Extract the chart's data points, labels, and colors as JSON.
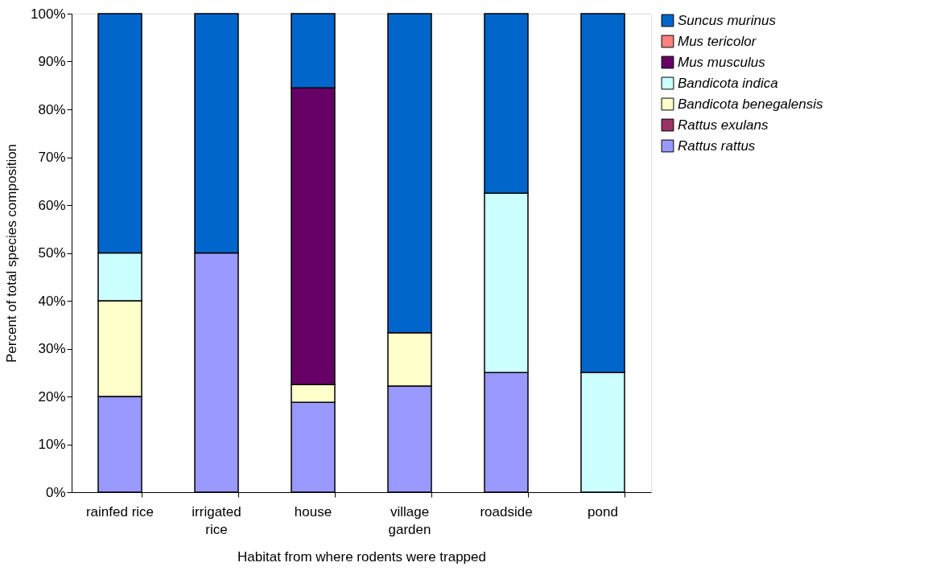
{
  "chart_data": {
    "type": "bar",
    "stacked": true,
    "xlabel": "Habitat from where rodents were trapped",
    "ylabel": "Percent of total species composition",
    "categories": [
      "rainfed rice",
      "irrigated rice",
      "house",
      "village garden",
      "roadside",
      "pond"
    ],
    "series": [
      {
        "name": "Rattus rattus",
        "color": "#9999ff",
        "values": [
          20,
          50,
          18.8,
          22.2,
          25,
          null
        ]
      },
      {
        "name": "Rattus exulans",
        "color": "#993366",
        "values": [
          null,
          null,
          null,
          null,
          null,
          null
        ]
      },
      {
        "name": "Bandicota benegalensis",
        "color": "#ffffcc",
        "values": [
          20,
          null,
          3.7,
          11.1,
          null,
          null
        ]
      },
      {
        "name": "Bandicota indica",
        "color": "#ccffff",
        "values": [
          10,
          null,
          null,
          null,
          37.5,
          25
        ]
      },
      {
        "name": "Mus musculus",
        "color": "#660066",
        "values": [
          null,
          null,
          62.0,
          null,
          null,
          null
        ]
      },
      {
        "name": "Mus tericolor",
        "color": "#ff8080",
        "values": [
          null,
          null,
          null,
          null,
          null,
          null
        ]
      },
      {
        "name": "Suncus murinus",
        "color": "#0066cc",
        "values": [
          50,
          50,
          15.5,
          66.7,
          37.5,
          75
        ]
      }
    ],
    "ylim": [
      0,
      100
    ],
    "yticks": [
      {
        "value": 0,
        "label": "0%"
      },
      {
        "value": 10,
        "label": "10%"
      },
      {
        "value": 20,
        "label": "20%"
      },
      {
        "value": 30,
        "label": "30%"
      },
      {
        "value": 40,
        "label": "40%"
      },
      {
        "value": 50,
        "label": "50%"
      },
      {
        "value": 60,
        "label": "60%"
      },
      {
        "value": 70,
        "label": "70%"
      },
      {
        "value": 80,
        "label": "80%"
      },
      {
        "value": 90,
        "label": "90%"
      },
      {
        "value": 100,
        "label": "100%"
      }
    ],
    "grid": false,
    "legend": "top right"
  }
}
